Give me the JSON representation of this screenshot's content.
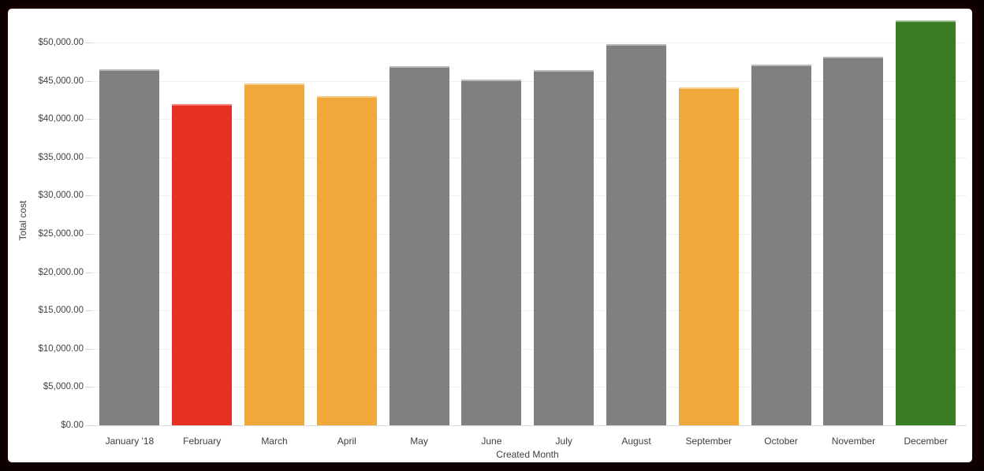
{
  "window": {
    "frame_color": "#200302",
    "card_color": "#ffffff"
  },
  "chart_data": {
    "type": "bar",
    "title": "",
    "xlabel": "Created Month",
    "ylabel": "Total cost",
    "ylim": [
      0,
      50000
    ],
    "grid": true,
    "legend": "none",
    "categories": [
      "January '18",
      "February",
      "March",
      "April",
      "May",
      "June",
      "July",
      "August",
      "September",
      "October",
      "November",
      "December"
    ],
    "values": [
      46500,
      42000,
      44700,
      43000,
      46900,
      45200,
      46400,
      49800,
      44100,
      47100,
      48100,
      52900
    ],
    "bar_colors": [
      "#808080",
      "#e73024",
      "#f0a83b",
      "#f0a83b",
      "#808080",
      "#808080",
      "#808080",
      "#808080",
      "#f0a83b",
      "#808080",
      "#808080",
      "#3a7d22"
    ],
    "color_legend": {
      "default": "#808080",
      "low": "#e73024",
      "warning": "#f0a83b",
      "high": "#3a7d22"
    },
    "y_ticks": {
      "values": [
        0,
        5000,
        10000,
        15000,
        20000,
        25000,
        30000,
        35000,
        40000,
        45000,
        50000
      ],
      "labels": [
        "$0.00",
        "$5,000.00",
        "$10,000.00",
        "$15,000.00",
        "$20,000.00",
        "$25,000.00",
        "$30,000.00",
        "$35,000.00",
        "$40,000.00",
        "$45,000.00",
        "$50,000.00"
      ]
    },
    "style": {
      "gridline_color": "#efefef",
      "axis_line_color": "#d9dde2",
      "text_color": "#3c4043"
    }
  }
}
